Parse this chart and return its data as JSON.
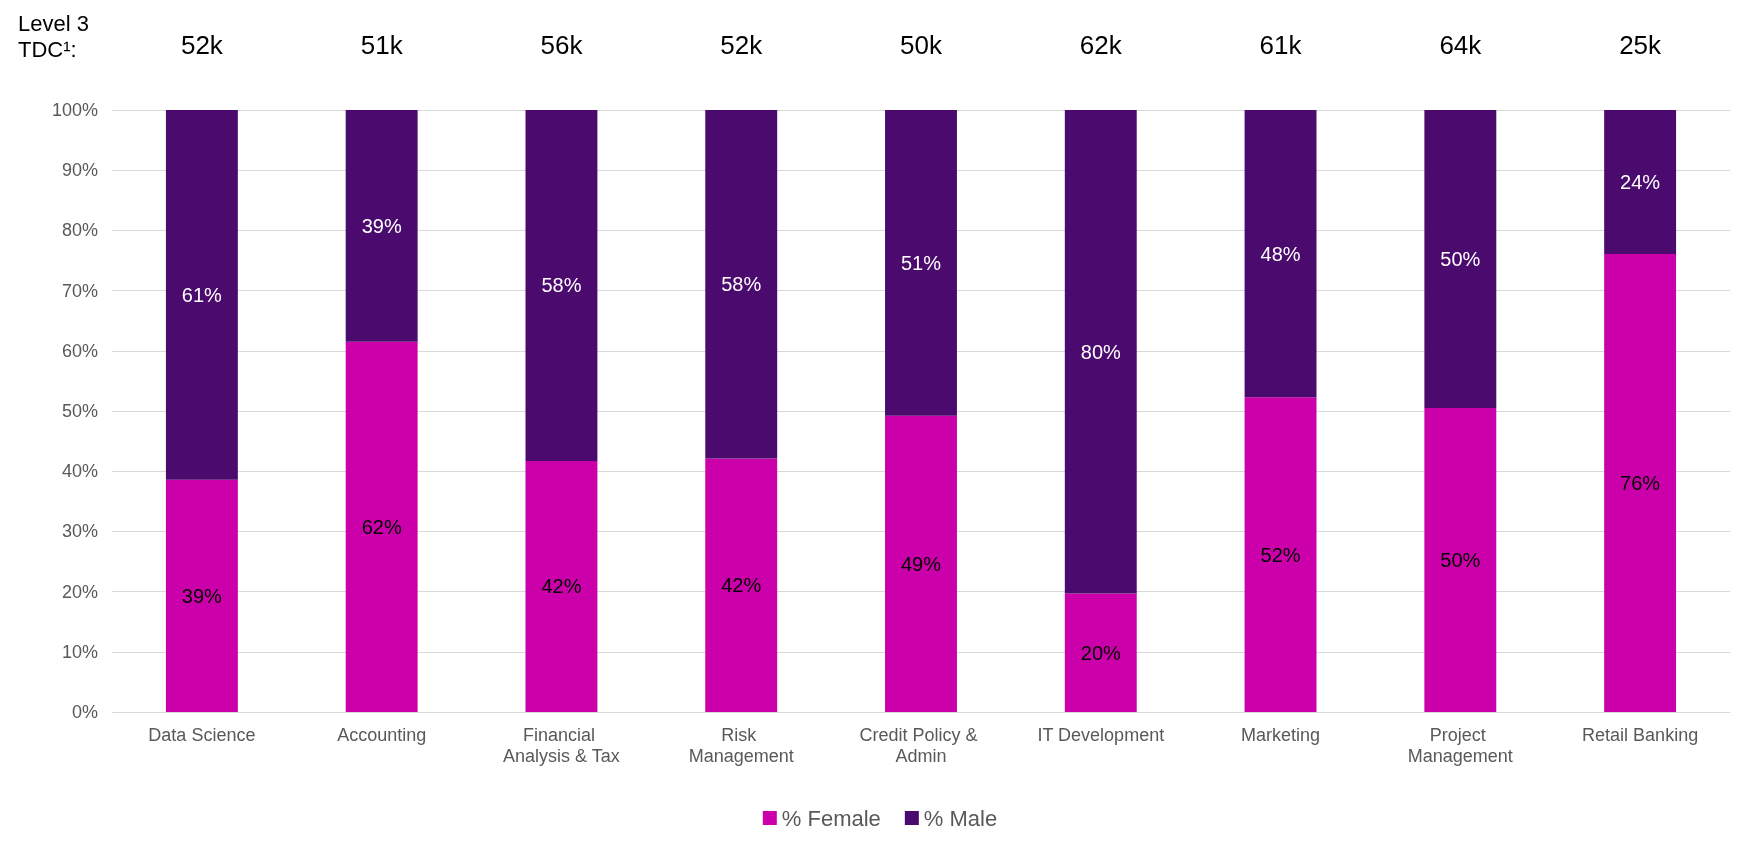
{
  "chart_data": {
    "type": "bar",
    "stacked": true,
    "categories": [
      "Data Science",
      "Accounting",
      "Financial Analysis & Tax",
      "Risk Management",
      "Credit Policy & Admin",
      "IT Development",
      "Marketing",
      "Project Management",
      "Retail Banking"
    ],
    "series": [
      {
        "name": "% Female",
        "color": "#cc00aa",
        "values": [
          38.6,
          61.5,
          41.7,
          42.1,
          49.2,
          19.7,
          52.3,
          50.5,
          76.1
        ],
        "value_labels": [
          "39%",
          "62%",
          "42%",
          "42%",
          "49%",
          "20%",
          "52%",
          "50%",
          "76%"
        ]
      },
      {
        "name": "% Male",
        "color": "#4b0a6e",
        "values": [
          61.4,
          38.5,
          58.3,
          57.9,
          50.8,
          80.3,
          47.7,
          49.5,
          23.9
        ],
        "value_labels": [
          "61%",
          "39%",
          "58%",
          "58%",
          "51%",
          "80%",
          "48%",
          "50%",
          "24%"
        ]
      }
    ],
    "ylim": [
      0,
      100
    ],
    "yticks": [
      {
        "value": 0,
        "label": "0%"
      },
      {
        "value": 10,
        "label": "10%"
      },
      {
        "value": 20,
        "label": "20%"
      },
      {
        "value": 30,
        "label": "30%"
      },
      {
        "value": 40,
        "label": "40%"
      },
      {
        "value": 50,
        "label": "50%"
      },
      {
        "value": 60,
        "label": "60%"
      },
      {
        "value": 70,
        "label": "70%"
      },
      {
        "value": 80,
        "label": "80%"
      },
      {
        "value": 90,
        "label": "90%"
      },
      {
        "value": 100,
        "label": "100%"
      }
    ],
    "grid": "y",
    "legend": "bottom",
    "annotations": [
      "Level 3\nTDC¹:",
      "52k",
      "51k",
      "56k",
      "52k",
      "50k",
      "62k",
      "61k",
      "64k",
      "25k"
    ]
  }
}
